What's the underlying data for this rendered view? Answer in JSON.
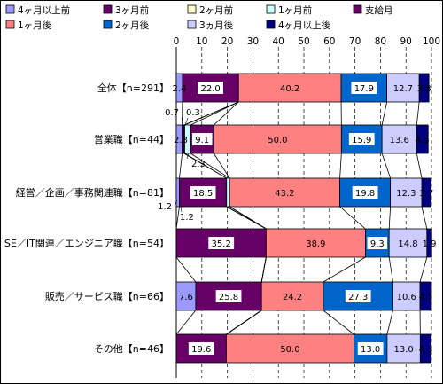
{
  "chart_data": {
    "type": "bar",
    "orientation": "horizontal",
    "stacked": true,
    "xlim": [
      0,
      100
    ],
    "xticks": [
      "0",
      "10",
      "20",
      "30",
      "40",
      "50",
      "60",
      "70",
      "80",
      "90",
      "100"
    ],
    "grid": true,
    "legend_position": "top",
    "categories": [
      "全体【n=291】",
      "営業職【n=44】",
      "経営／企画／事務関連職【n=81】",
      "SE／IT関連／エンジニア職【n=54】",
      "販売／サービス職【n=66】",
      "その他【n=46】"
    ],
    "series": [
      {
        "name": "4ヶ月以上前",
        "color": "#9999ff",
        "values": [
          2.4,
          2.3,
          1.2,
          0.0,
          7.6,
          0.0
        ],
        "labels": [
          "2.4",
          "2.3",
          "1.2",
          "",
          "7.6",
          ""
        ]
      },
      {
        "name": "3ヶ月前",
        "color": "#660066",
        "values": [
          22.0,
          0.7,
          18.5,
          35.2,
          25.8,
          19.6
        ],
        "labels": [
          "22.0",
          "0.7",
          "18.5",
          "35.2",
          "25.8",
          "19.6"
        ]
      },
      {
        "name": "2ヶ月前",
        "color": "#ffffcc",
        "values": [
          0.0,
          0.3,
          0.0,
          0.0,
          0.0,
          0.0
        ],
        "labels": [
          "",
          "0.3",
          "",
          "",
          "",
          ""
        ]
      },
      {
        "name": "1ヶ月前",
        "color": "#ccffff",
        "values": [
          0.0,
          2.3,
          1.2,
          0.0,
          0.0,
          0.0
        ],
        "labels": [
          "",
          "2.3",
          "1.2",
          "",
          "",
          ""
        ]
      },
      {
        "name": "支給月",
        "color": "#660066",
        "values": [
          0.0,
          9.1,
          0.0,
          0.0,
          0.0,
          0.0
        ],
        "labels": [
          "",
          "9.1",
          "",
          "",
          "",
          ""
        ]
      },
      {
        "name": "1ヶ月後",
        "color": "#ff8080",
        "values": [
          40.2,
          50.0,
          43.2,
          38.9,
          24.2,
          50.0
        ],
        "labels": [
          "40.2",
          "50.0",
          "43.2",
          "38.9",
          "24.2",
          "50.0"
        ]
      },
      {
        "name": "2ヶ月後",
        "color": "#0066cc",
        "values": [
          17.9,
          15.9,
          19.8,
          9.3,
          27.3,
          13.0
        ],
        "labels": [
          "17.9",
          "15.9",
          "19.8",
          "9.3",
          "27.3",
          "13.0"
        ]
      },
      {
        "name": "3ヵ月後",
        "color": "#ccccff",
        "values": [
          12.7,
          13.6,
          12.3,
          14.8,
          10.6,
          13.0
        ],
        "labels": [
          "12.7",
          "13.6",
          "12.3",
          "14.8",
          "10.6",
          "13.0"
        ]
      },
      {
        "name": "4ヶ月以上後",
        "color": "#000080",
        "values": [
          3.8,
          4.5,
          3.7,
          1.9,
          4.5,
          4.3
        ],
        "labels": [
          "3.8",
          "4.5",
          "3.7",
          "1.9",
          "4.5",
          "4.3"
        ]
      }
    ]
  }
}
